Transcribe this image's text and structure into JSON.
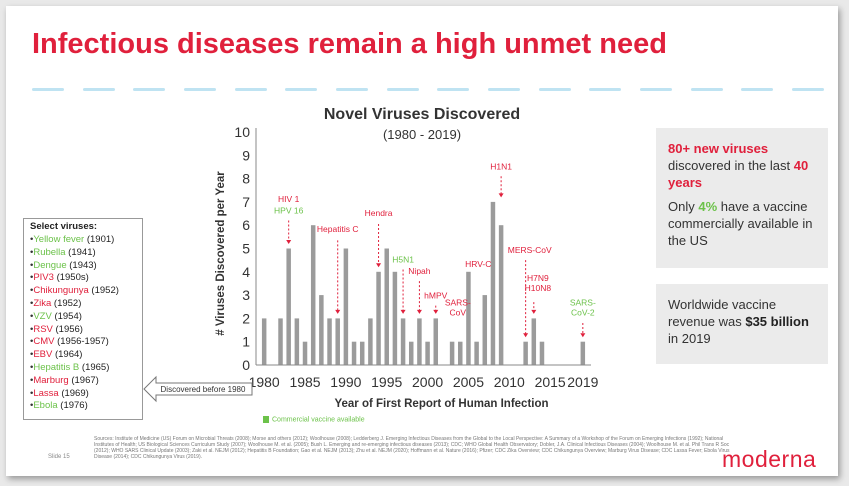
{
  "slide": {
    "title": "Infectious diseases remain a high unmet need",
    "slide_number": "Slide 15",
    "logo": "moderna",
    "sources": "Sources: Institute of Medicine (US) Forum on Microbial Threats (2008); Morse and others (2012); Woolhouse (2008); Ledderberg J. Emerging Infectious Diseases from the Global to the Local Perspective: A Summary of a Workshop of the Forum on Emerging Infections (1992); National Institutes of Health; US Biological Sciences Curriculum Study (2007); Woolhouse M. et al. (2005); Bush L. Emerging and re-emerging infectious diseases (2013); CDC; WHO Global Health Observatory; Dobler, J.A. Clinical Infectious Diseases (2004); Woolhouse M. et al. Phil Trans R Soc (2012); WHO SARS Clinical Update (2003); Zaki et al. NEJM (2012); Hepatitis B Foundation; Gao et al. NEJM (2013); Zhu et al. NEJM (2020); Hoffmann et al. Nature (2016); Pfizer; CDC Zika Overview; CDC Chikungunya Overview; Marburg Virus Disease; CDC Lassa Fever; Ebola Virus Disease (2014); CDC Chikungunya Virus (2019)."
  },
  "chart_data": {
    "type": "bar",
    "title": "Novel Viruses Discovered",
    "subtitle": "(1980 - 2019)",
    "xlabel": "Year of First Report of Human Infection",
    "ylabel": "# Viruses Discovered per Year",
    "ylim": [
      0,
      10
    ],
    "yticks": [
      0,
      1,
      2,
      3,
      4,
      5,
      6,
      7,
      8,
      9,
      10
    ],
    "xticks": [
      1980,
      1985,
      1990,
      1995,
      2000,
      2005,
      2010,
      2015,
      2019
    ],
    "grid": false,
    "bar_color": "#9b9b9b",
    "commercial_vaccine_color": "#6cc24a",
    "legend": [
      {
        "label": "Commercial vaccine available",
        "color": "#6cc24a",
        "placement": "bottom-left"
      }
    ],
    "years": [
      1980,
      1981,
      1982,
      1983,
      1984,
      1985,
      1986,
      1987,
      1988,
      1989,
      1990,
      1991,
      1992,
      1993,
      1994,
      1995,
      1996,
      1997,
      1998,
      1999,
      2000,
      2001,
      2002,
      2003,
      2004,
      2005,
      2006,
      2007,
      2008,
      2009,
      2010,
      2011,
      2012,
      2013,
      2014,
      2015,
      2016,
      2017,
      2018,
      2019
    ],
    "values": [
      2,
      0,
      2,
      5,
      2,
      1,
      6,
      3,
      2,
      2,
      5,
      1,
      1,
      2,
      4,
      5,
      4,
      2,
      1,
      2,
      1,
      2,
      0,
      1,
      1,
      4,
      1,
      3,
      7,
      6,
      0,
      0,
      1,
      2,
      1,
      0,
      0,
      0,
      0,
      1
    ],
    "annotations": [
      {
        "lines": [
          "HIV 1"
        ],
        "color": "#e0203c",
        "year": 1983,
        "y": 7.0
      },
      {
        "lines": [
          "HPV 16"
        ],
        "color": "#6cc24a",
        "year": 1983,
        "y": 6.5
      },
      {
        "lines": [
          "Hepatitis C"
        ],
        "color": "#e0203c",
        "year": 1989,
        "y": 5.7
      },
      {
        "lines": [
          "Hendra"
        ],
        "color": "#e0203c",
        "year": 1994,
        "y": 6.4
      },
      {
        "lines": [
          "H5N1"
        ],
        "color": "#6cc24a",
        "year": 1997,
        "y": 4.4
      },
      {
        "lines": [
          "Nipah"
        ],
        "color": "#e0203c",
        "year": 1999,
        "y": 3.9
      },
      {
        "lines": [
          "hMPV"
        ],
        "color": "#e0203c",
        "year": 2001,
        "y": 2.85
      },
      {
        "lines": [
          "SARS-",
          "CoV"
        ],
        "color": "#e0203c",
        "year": 2003.7,
        "y": 2.55
      },
      {
        "lines": [
          "HRV-C"
        ],
        "color": "#e0203c",
        "year": 2006.2,
        "y": 4.2
      },
      {
        "lines": [
          "H1N1"
        ],
        "color": "#e0203c",
        "year": 2009,
        "y": 8.4
      },
      {
        "lines": [
          "MERS-CoV"
        ],
        "color": "#e0203c",
        "year": 2012.5,
        "y": 4.8
      },
      {
        "lines": [
          "H7N9",
          "H10N8"
        ],
        "color": "#e0203c",
        "year": 2013.5,
        "y": 3.6
      },
      {
        "lines": [
          "SARS-",
          "CoV-2"
        ],
        "color": "#6cc24a",
        "year": 2019,
        "y": 2.55
      }
    ],
    "arrow_label": "Discovered before 1980"
  },
  "select_viruses": {
    "title": "Select viruses:",
    "items": [
      {
        "name": "Yellow fever",
        "year": "(1901)",
        "color": "#6cc24a"
      },
      {
        "name": "Rubella",
        "year": "(1941)",
        "color": "#6cc24a"
      },
      {
        "name": "Dengue",
        "year": "(1943)",
        "color": "#6cc24a"
      },
      {
        "name": "PIV3",
        "year": "(1950s)",
        "color": "#e0203c"
      },
      {
        "name": "Chikungunya",
        "year": "(1952)",
        "color": "#e0203c"
      },
      {
        "name": "Zika",
        "year": "(1952)",
        "color": "#e0203c"
      },
      {
        "name": "VZV",
        "year": "(1954)",
        "color": "#6cc24a"
      },
      {
        "name": "RSV",
        "year": "(1956)",
        "color": "#e0203c"
      },
      {
        "name": "CMV",
        "year": "(1956-1957)",
        "color": "#e0203c"
      },
      {
        "name": "EBV",
        "year": "(1964)",
        "color": "#e0203c"
      },
      {
        "name": "Hepatitis B",
        "year": "(1965)",
        "color": "#6cc24a"
      },
      {
        "name": "Marburg",
        "year": "(1967)",
        "color": "#e0203c"
      },
      {
        "name": "Lassa",
        "year": "(1969)",
        "color": "#e0203c"
      },
      {
        "name": "Ebola",
        "year": "(1976)",
        "color": "#6cc24a"
      }
    ]
  },
  "panel_top": {
    "highlight1": "80+ new viruses",
    "text1": "discovered in the last",
    "highlight2": "40 years",
    "text2a": "Only",
    "highlight3": "4%",
    "text2b": "have a vaccine commercially available in the US"
  },
  "panel_bottom": {
    "text1": "Worldwide vaccine revenue was",
    "highlight1": "$35 billion",
    "text2": "in 2019"
  },
  "colors": {
    "accent": "#e0203c",
    "green": "#6cc24a",
    "dash": "#bfe3f2"
  }
}
